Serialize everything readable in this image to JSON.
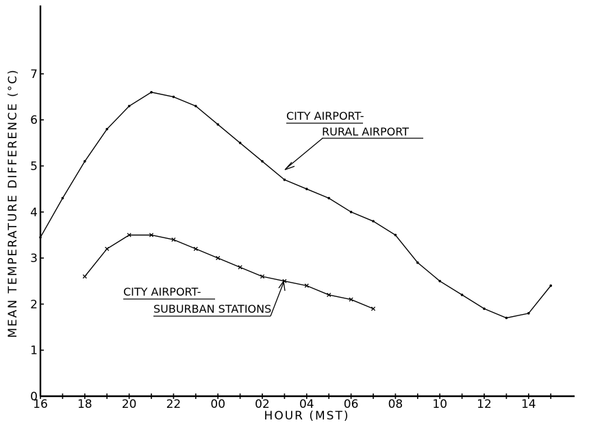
{
  "chart_data": {
    "type": "line",
    "xlabel": "HOUR (MST)",
    "ylabel": "MEAN TEMPERATURE DIFFERENCE (°C)",
    "ylim": [
      0,
      7
    ],
    "x_tick_labels": [
      "16",
      "18",
      "20",
      "22",
      "00",
      "02",
      "04",
      "06",
      "08",
      "10",
      "12",
      "14"
    ],
    "y_tick_labels": [
      "0",
      "1",
      "2",
      "3",
      "4",
      "5",
      "6",
      "7"
    ],
    "grid": false,
    "series": [
      {
        "name": "CITY AIRPORT- RURAL AIRPORT",
        "name_lines": [
          "CITY AIRPORT-",
          "RURAL AIRPORT"
        ],
        "marker": "dot",
        "x": [
          "16",
          "17",
          "18",
          "19",
          "20",
          "21",
          "22",
          "23",
          "00",
          "01",
          "02",
          "03",
          "04",
          "05",
          "06",
          "07",
          "08",
          "09",
          "10",
          "11",
          "12",
          "13",
          "14",
          "15"
        ],
        "values": [
          3.45,
          4.3,
          5.1,
          5.8,
          6.3,
          6.6,
          6.5,
          6.3,
          5.9,
          5.5,
          5.1,
          4.7,
          4.5,
          4.3,
          4.0,
          3.8,
          3.5,
          2.9,
          2.5,
          2.2,
          1.9,
          1.7,
          1.8,
          2.4
        ]
      },
      {
        "name": "CITY AIRPORT- SUBURBAN STATIONS",
        "name_lines": [
          "CITY AIRPORT-",
          "SUBURBAN STATIONS"
        ],
        "marker": "x",
        "x": [
          "18",
          "19",
          "20",
          "21",
          "22",
          "23",
          "00",
          "01",
          "02",
          "03",
          "04",
          "05",
          "06",
          "07"
        ],
        "values": [
          2.6,
          3.2,
          3.5,
          3.5,
          3.4,
          3.2,
          3.0,
          2.8,
          2.6,
          2.5,
          2.4,
          2.2,
          2.1,
          1.9
        ]
      }
    ]
  }
}
